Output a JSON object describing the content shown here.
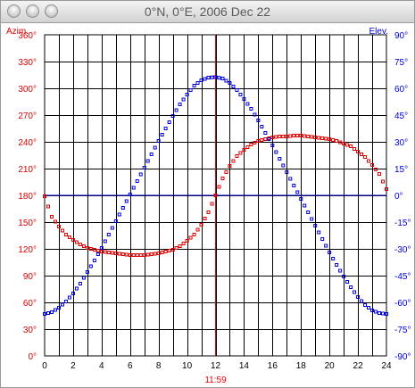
{
  "window": {
    "title": "0°N, 0°E, 2006 Dec 22"
  },
  "chart_data": {
    "type": "scatter",
    "title": "0°N, 0°E, 2006 Dec 22",
    "left_axis_label": "Azim.",
    "right_axis_label": "Elev.",
    "current_time_label": "11:59",
    "current_time_hour": 11.98,
    "x_range": [
      0,
      24
    ],
    "x_ticks": [
      0,
      2,
      4,
      6,
      8,
      10,
      12,
      14,
      16,
      18,
      20,
      22,
      24
    ],
    "left_range": [
      0,
      360
    ],
    "left_ticks": [
      "0°",
      "30°",
      "60°",
      "90°",
      "120°",
      "150°",
      "180°",
      "210°",
      "240°",
      "270°",
      "300°",
      "330°",
      "360°"
    ],
    "right_range": [
      -90,
      90
    ],
    "right_ticks": [
      "-90°",
      "-75°",
      "-60°",
      "-45°",
      "-30°",
      "-15°",
      "0°",
      "15°",
      "30°",
      "45°",
      "60°",
      "75°",
      "90°"
    ],
    "grid": true,
    "horizon_elevation": 0,
    "colors": {
      "azimuth": "#dd0000",
      "elevation": "#0000dd",
      "horizon": "#0000cc",
      "noon_line": "#ee0000",
      "grid": "#000000"
    },
    "series": [
      {
        "role": "azimuth",
        "axis": "left",
        "x": [
          0,
          0.5,
          1,
          1.5,
          2,
          2.5,
          3,
          3.5,
          4,
          4.5,
          5,
          5.5,
          6,
          6.5,
          7,
          7.5,
          8,
          8.5,
          9,
          9.5,
          10,
          10.5,
          11,
          11.5,
          12,
          12.5,
          13,
          13.5,
          14,
          14.5,
          15,
          15.5,
          16,
          16.5,
          17,
          17.5,
          18,
          18.5,
          19,
          19.5,
          20,
          20.5,
          21,
          21.5,
          22,
          22.5,
          23,
          23.5,
          24
        ],
        "y": [
          179,
          156,
          145,
          136,
          130,
          125,
          121,
          119,
          117,
          116,
          115,
          114,
          113,
          113,
          113,
          114,
          115,
          117,
          119,
          123,
          129,
          136,
          147,
          161,
          180,
          199,
          213,
          224,
          231,
          237,
          241,
          243,
          245,
          246,
          246,
          247,
          247,
          246,
          245,
          244,
          243,
          241,
          238,
          235,
          229,
          223,
          214,
          204,
          187
        ]
      },
      {
        "role": "elevation",
        "axis": "right",
        "x": [
          0,
          0.5,
          1,
          1.5,
          2,
          2.5,
          3,
          3.5,
          4,
          4.5,
          5,
          5.5,
          6,
          6.5,
          7,
          7.5,
          8,
          8.5,
          9,
          9.5,
          10,
          10.5,
          11,
          11.5,
          12,
          12.5,
          13,
          13.5,
          14,
          14.5,
          15,
          15.5,
          16,
          16.5,
          17,
          17.5,
          18,
          18.5,
          19,
          19.5,
          20,
          20.5,
          21,
          21.5,
          22,
          22.5,
          23,
          23.5,
          24
        ],
        "y": [
          -66.5,
          -65.5,
          -63,
          -59.5,
          -55,
          -49.5,
          -43,
          -36.5,
          -29.5,
          -22,
          -14.5,
          -7,
          0.5,
          8,
          15.5,
          23,
          30.5,
          37.5,
          44.5,
          51,
          56.5,
          61.5,
          64.5,
          66,
          66.3,
          65.5,
          63,
          59,
          54,
          48.5,
          42,
          35,
          28,
          20.5,
          13,
          5.5,
          -2,
          -9.5,
          -17,
          -24.5,
          -32,
          -39,
          -45.5,
          -51.5,
          -57,
          -61.5,
          -64.5,
          -66,
          -66.5
        ]
      }
    ]
  }
}
